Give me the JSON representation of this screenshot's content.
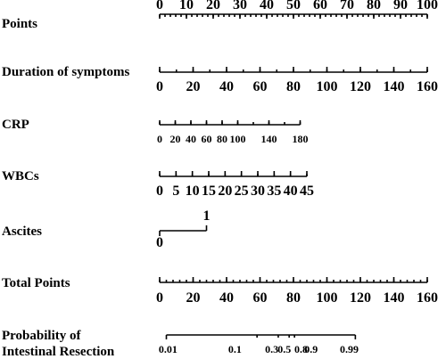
{
  "chart_data": {
    "type": "nomogram",
    "rows": [
      {
        "key": "points",
        "label": "Points",
        "ticks": [
          "0",
          "10",
          "20",
          "30",
          "40",
          "50",
          "60",
          "70",
          "80",
          "90",
          "100"
        ],
        "tick_values": [
          0,
          10,
          20,
          30,
          40,
          50,
          60,
          70,
          80,
          90,
          100
        ],
        "minor_step": 2,
        "points_range": [
          0,
          100
        ]
      },
      {
        "key": "duration",
        "label": "Duration of symptoms",
        "ticks": [
          "0",
          "20",
          "40",
          "60",
          "80",
          "100",
          "120",
          "140",
          "160"
        ],
        "tick_values": [
          0,
          20,
          40,
          60,
          80,
          100,
          120,
          140,
          160
        ],
        "minor_step": 10,
        "points_range": [
          0,
          100
        ]
      },
      {
        "key": "crp",
        "label": "CRP",
        "ticks": [
          "0",
          "20",
          "40",
          "60",
          "80",
          "100",
          "140",
          "180"
        ],
        "tick_values": [
          0,
          20,
          40,
          60,
          80,
          100,
          140,
          180
        ],
        "minor_step": 20,
        "points_range": [
          0,
          52.5
        ]
      },
      {
        "key": "wbc",
        "label": "WBCs",
        "ticks": [
          "0",
          "5",
          "10",
          "15",
          "20",
          "25",
          "30",
          "35",
          "40",
          "45"
        ],
        "tick_values": [
          0,
          5,
          10,
          15,
          20,
          25,
          30,
          35,
          40,
          45
        ],
        "minor_step": 5,
        "points_range": [
          0,
          55
        ]
      },
      {
        "key": "ascites",
        "label": "Ascites",
        "ticks": [
          "0",
          "1"
        ],
        "tick_values": [
          0,
          1
        ],
        "points_range": [
          0,
          17.5
        ]
      },
      {
        "key": "total",
        "label": "Total Points",
        "ticks": [
          "0",
          "20",
          "40",
          "60",
          "80",
          "100",
          "120",
          "140",
          "160"
        ],
        "tick_values": [
          0,
          20,
          40,
          60,
          80,
          100,
          120,
          140,
          160
        ],
        "minor_step": 4,
        "points_range": [
          0,
          100
        ]
      },
      {
        "key": "prob",
        "label": "Probability of Intestinal Resection",
        "label_lines": [
          "Probability of",
          "Intestinal Resection"
        ],
        "ticks": [
          "0.01",
          "0.1",
          "0.3",
          "0.5",
          "0.8",
          "0.9",
          "0.99"
        ],
        "tick_values": [
          0.01,
          0.1,
          0.3,
          0.5,
          0.8,
          0.9,
          0.99
        ],
        "minor_values": [
          0.2,
          0.4,
          0.6,
          0.7
        ],
        "scale": "logit",
        "total_points_at": [
          5,
          45,
          67,
          74.5,
          84.5,
          90.5,
          113.3
        ],
        "axis_range_total_points": [
          4,
          117
        ]
      }
    ]
  }
}
